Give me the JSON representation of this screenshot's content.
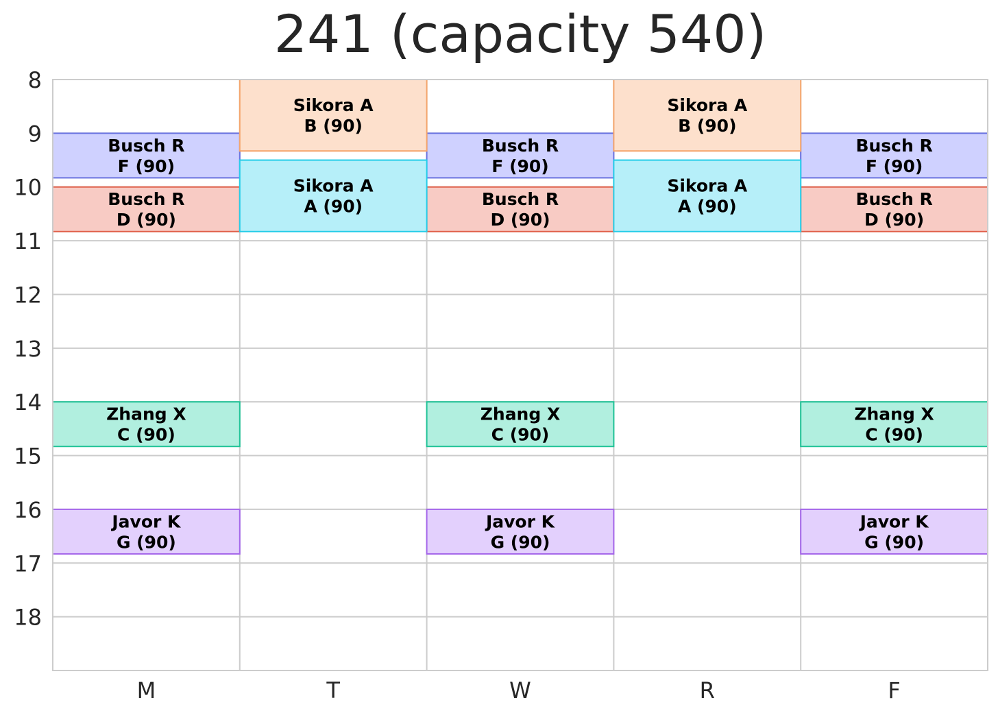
{
  "title": "241 (capacity 540)",
  "chart_data": {
    "type": "timetable",
    "title": "241 (capacity 540)",
    "days": [
      "M",
      "T",
      "W",
      "R",
      "F"
    ],
    "hour_ticks": [
      8,
      9,
      10,
      11,
      12,
      13,
      14,
      15,
      16,
      17,
      18
    ],
    "ylim": [
      19,
      8
    ],
    "grid": true,
    "sections": [
      {
        "instructor": "Busch R",
        "section": "F (90)",
        "days": [
          "M",
          "W",
          "F"
        ],
        "start": 9.0,
        "end": 9.83,
        "fill": "#cfd1ff",
        "stroke": "#6a73e0"
      },
      {
        "instructor": "Busch R",
        "section": "D (90)",
        "days": [
          "M",
          "W",
          "F"
        ],
        "start": 10.0,
        "end": 10.83,
        "fill": "#f8cbc4",
        "stroke": "#e0604a"
      },
      {
        "instructor": "Zhang X",
        "section": "C (90)",
        "days": [
          "M",
          "W",
          "F"
        ],
        "start": 14.0,
        "end": 14.83,
        "fill": "#b1efdf",
        "stroke": "#20c397"
      },
      {
        "instructor": "Javor K",
        "section": "G (90)",
        "days": [
          "M",
          "W",
          "F"
        ],
        "start": 16.0,
        "end": 16.83,
        "fill": "#e3d0fd",
        "stroke": "#a566ea"
      },
      {
        "instructor": "Sikora A",
        "section": "B (90)",
        "days": [
          "T",
          "R"
        ],
        "start": 8.0,
        "end": 9.33,
        "fill": "#fde0cc",
        "stroke": "#f4a56c"
      },
      {
        "instructor": "Sikora A",
        "section": "A (90)",
        "days": [
          "T",
          "R"
        ],
        "start": 9.5,
        "end": 10.83,
        "fill": "#b6eff9",
        "stroke": "#25cde8"
      }
    ]
  }
}
